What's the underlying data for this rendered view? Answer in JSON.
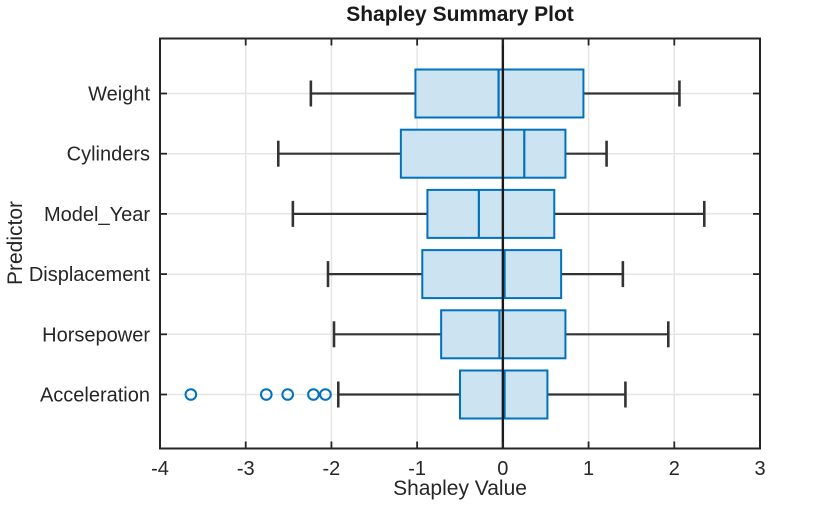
{
  "chart_data": {
    "type": "boxplot",
    "orientation": "horizontal",
    "title": "Shapley Summary Plot",
    "xlabel": "Shapley Value",
    "ylabel": "Predictor",
    "xlim": [
      -4,
      3
    ],
    "xticks": [
      -4,
      -3,
      -2,
      -1,
      0,
      1,
      2,
      3
    ],
    "xtick_labels": [
      "-4",
      "-3",
      "-2",
      "-1",
      "0",
      "1",
      "2",
      "3"
    ],
    "grid": true,
    "zero_line_x": 0,
    "legend": "none",
    "categories": [
      "Weight",
      "Cylinders",
      "Model_Year",
      "Displacement",
      "Horsepower",
      "Acceleration"
    ],
    "boxes": [
      {
        "category": "Weight",
        "whisker_low": -2.24,
        "q1": -1.02,
        "median": -0.05,
        "q3": 0.94,
        "whisker_high": 2.06,
        "outliers": []
      },
      {
        "category": "Cylinders",
        "whisker_low": -2.62,
        "q1": -1.19,
        "median": 0.25,
        "q3": 0.73,
        "whisker_high": 1.21,
        "outliers": []
      },
      {
        "category": "Model_Year",
        "whisker_low": -2.45,
        "q1": -0.88,
        "median": -0.28,
        "q3": 0.6,
        "whisker_high": 2.35,
        "outliers": []
      },
      {
        "category": "Displacement",
        "whisker_low": -2.04,
        "q1": -0.94,
        "median": 0.02,
        "q3": 0.68,
        "whisker_high": 1.4,
        "outliers": []
      },
      {
        "category": "Horsepower",
        "whisker_low": -1.97,
        "q1": -0.72,
        "median": -0.04,
        "q3": 0.73,
        "whisker_high": 1.93,
        "outliers": []
      },
      {
        "category": "Acceleration",
        "whisker_low": -1.92,
        "q1": -0.5,
        "median": 0.02,
        "q3": 0.52,
        "whisker_high": 1.43,
        "outliers": [
          -3.64,
          -2.76,
          -2.51,
          -2.21,
          -2.07
        ]
      }
    ],
    "colors": {
      "box_edge": "#0072BD",
      "box_fill": "#CCE3F2",
      "median": "#0072BD",
      "outlier": "#0072BD",
      "whisker": "#333333",
      "axis": "#262626",
      "zero_line": "#1a1a1a",
      "grid": "#e5e5e5",
      "text": "#262626"
    }
  }
}
